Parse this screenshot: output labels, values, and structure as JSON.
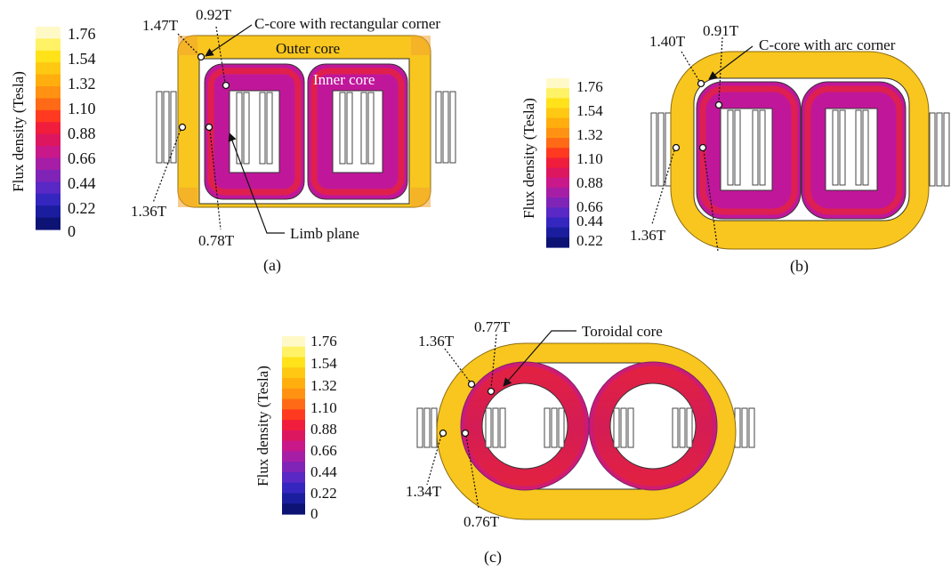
{
  "colorbar": {
    "title": "Flux density (Tesla)",
    "ticks": [
      "1.76",
      "1.54",
      "1.32",
      "1.10",
      "0.88",
      "0.66",
      "0.44",
      "0.22",
      "0"
    ],
    "ticks_b": [
      "1.76",
      "1.54",
      "1.32",
      "1.10",
      "0.88",
      "0.66",
      "0.44",
      "0.22"
    ],
    "colors": [
      "#fff9c8",
      "#fff266",
      "#ffe21a",
      "#ffc812",
      "#ffae0e",
      "#ff9212",
      "#ff6a16",
      "#ff3a20",
      "#f01d3c",
      "#dd1660",
      "#c8188a",
      "#a61ea6",
      "#8024b8",
      "#5a28c4",
      "#3526c0",
      "#1a1e9e",
      "#0c1374"
    ]
  },
  "colors": {
    "outer_core": "#f8c61e",
    "inner_core": "#c0179a",
    "inner_high": "#e4223f",
    "outline": "#333333"
  },
  "panels": {
    "a": {
      "caption": "(a)",
      "title": "C-core with rectangular corner",
      "outer_label": "Outer core",
      "inner_label": "Inner core",
      "limb_label": "Limb plane",
      "v_147": "1.47T",
      "v_092": "0.92T",
      "v_136": "1.36T",
      "v_078": "0.78T"
    },
    "b": {
      "caption": "(b)",
      "title": "C-core with arc corner",
      "v_140": "1.40T",
      "v_091": "0.91T",
      "v_136": "1.36T"
    },
    "c": {
      "caption": "(c)",
      "title": "Toroidal core",
      "v_136": "1.36T",
      "v_077": "0.77T",
      "v_134": "1.34T",
      "v_076": "0.76T"
    }
  }
}
